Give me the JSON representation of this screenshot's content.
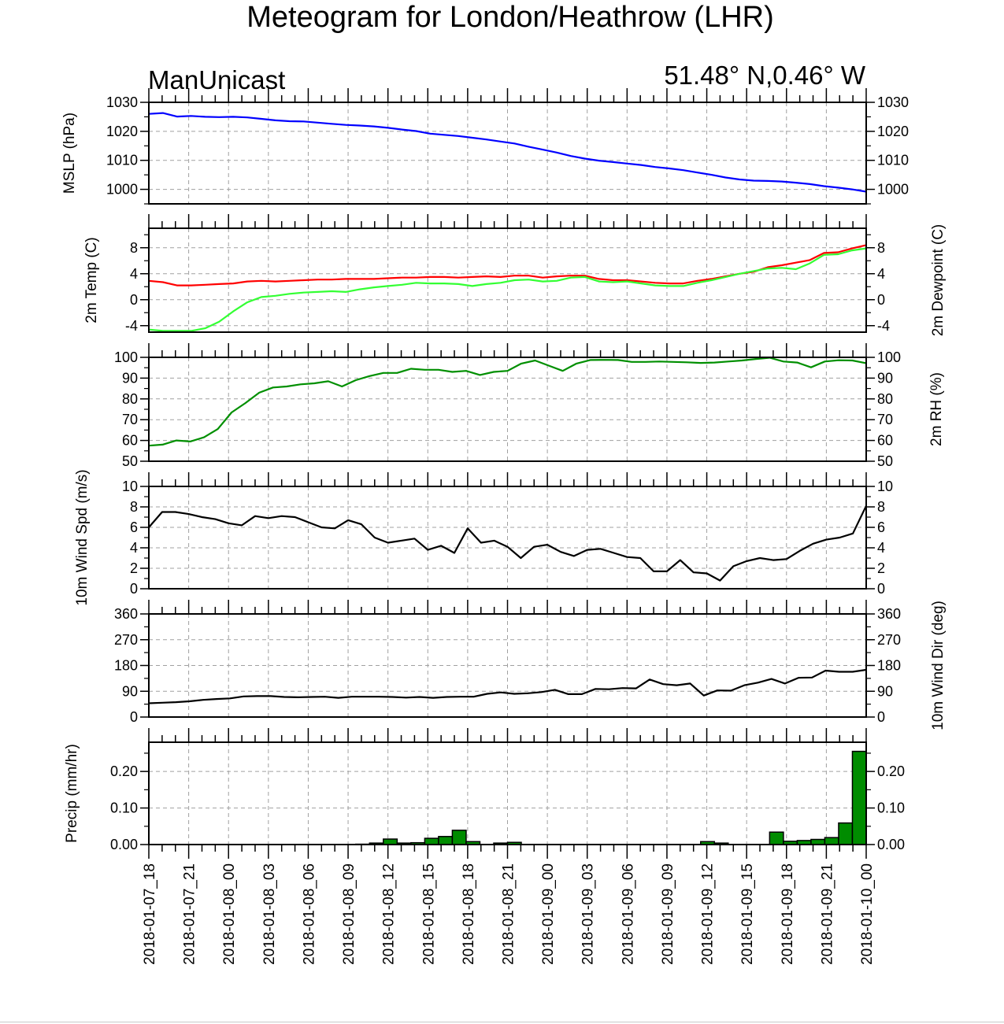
{
  "title": "Meteogram for London/Heathrow (LHR)",
  "model_label": "ManUnicast",
  "location_label": "51.48° N,0.46° W",
  "colors": {
    "mslp": "#0000ff",
    "temp": "#ff0000",
    "dewpoint": "#33ff33",
    "rh": "#008f00",
    "wind": "#000000",
    "precip_fill": "#008c00",
    "grid": "#a0a0a0"
  },
  "chart_data": [
    {
      "type": "line",
      "ylabel": "MSLP (hPa)",
      "ylabel_right": "",
      "ylim": [
        995,
        1030
      ],
      "yticks": [
        1000,
        1010,
        1020,
        1030
      ],
      "tick_labels": [
        "1000",
        "1010",
        "1020",
        "1030"
      ],
      "series": [
        {
          "color": "#0000ff",
          "values": [
            1026,
            1026.3,
            1025.1,
            1025.3,
            1025,
            1024.9,
            1025,
            1024.8,
            1024.3,
            1023.8,
            1023.5,
            1023.4,
            1023,
            1022.6,
            1022.2,
            1022,
            1021.7,
            1021.2,
            1020.6,
            1020.1,
            1019.2,
            1018.8,
            1018.4,
            1017.8,
            1017.2,
            1016.5,
            1015.8,
            1014.7,
            1013.7,
            1012.7,
            1011.5,
            1010.6,
            1009.9,
            1009.4,
            1008.9,
            1008.4,
            1007.7,
            1007.2,
            1006.6,
            1005.8,
            1005,
            1004.1,
            1003.4,
            1003,
            1002.9,
            1002.7,
            1002.3,
            1001.8,
            1001.1,
            1000.6,
            1000,
            999.2
          ]
        }
      ]
    },
    {
      "type": "line",
      "ylabel": "2m Temp (C)",
      "ylabel_right": "2m Dewpoint (C)",
      "ylim": [
        -5,
        11
      ],
      "yticks": [
        -4,
        0,
        4,
        8
      ],
      "tick_labels": [
        "-4",
        "0",
        "4",
        "8"
      ],
      "series": [
        {
          "color": "#ff0000",
          "values": [
            2.9,
            2.7,
            2.2,
            2.2,
            2.3,
            2.4,
            2.5,
            2.8,
            2.9,
            2.8,
            2.9,
            3,
            3.1,
            3.1,
            3.2,
            3.2,
            3.2,
            3.3,
            3.4,
            3.4,
            3.5,
            3.5,
            3.4,
            3.5,
            3.6,
            3.5,
            3.7,
            3.7,
            3.4,
            3.6,
            3.7,
            3.7,
            3.2,
            3.0,
            3.0,
            2.8,
            2.6,
            2.5,
            2.5,
            2.9,
            3.2,
            3.6,
            4.0,
            4.3,
            5.0,
            5.3,
            5.7,
            6.1,
            7.2,
            7.3,
            7.9,
            8.4
          ]
        },
        {
          "color": "#33ff33",
          "values": [
            -4.6,
            -4.8,
            -4.8,
            -4.8,
            -4.4,
            -3.4,
            -1.8,
            -0.4,
            0.4,
            0.6,
            0.9,
            1.1,
            1.2,
            1.3,
            1.2,
            1.6,
            1.9,
            2.1,
            2.3,
            2.6,
            2.5,
            2.5,
            2.4,
            2.1,
            2.4,
            2.6,
            3.0,
            3.1,
            2.8,
            2.9,
            3.4,
            3.5,
            2.8,
            2.7,
            2.8,
            2.5,
            2.2,
            2.1,
            2.1,
            2.6,
            3.0,
            3.5,
            4.0,
            4.4,
            4.8,
            4.9,
            4.7,
            5.6,
            6.9,
            7.0,
            7.6,
            7.9
          ]
        }
      ]
    },
    {
      "type": "line",
      "ylabel": "",
      "ylabel_right": "2m RH (%)",
      "ylim": [
        50,
        100
      ],
      "yticks": [
        50,
        60,
        70,
        80,
        90,
        100
      ],
      "tick_labels": [
        "50",
        "60",
        "70",
        "80",
        "90",
        "100"
      ],
      "series": [
        {
          "color": "#008f00",
          "values": [
            57.5,
            58,
            60,
            59.5,
            61.5,
            65.5,
            73.5,
            78,
            83,
            85.5,
            86,
            87,
            87.5,
            88.5,
            86,
            89,
            91,
            92.5,
            92.5,
            94.5,
            94,
            94,
            93,
            93.5,
            91.5,
            93,
            93.5,
            97,
            98.5,
            96,
            93.5,
            97,
            98.7,
            98.8,
            98.7,
            97.8,
            97.8,
            98,
            97.8,
            97.6,
            97.3,
            97.5,
            98,
            98.5,
            99.2,
            99.8,
            98,
            97.5,
            95.2,
            98,
            98.6,
            98.5,
            97.2
          ]
        }
      ]
    },
    {
      "type": "line",
      "ylabel": "10m Wind Spd (m/s)",
      "ylabel_right": "",
      "ylim": [
        0,
        10
      ],
      "yticks": [
        0,
        2,
        4,
        6,
        8,
        10
      ],
      "tick_labels": [
        "0",
        "2",
        "4",
        "6",
        "8",
        "10"
      ],
      "series": [
        {
          "color": "#000000",
          "values": [
            6,
            7.5,
            7.5,
            7.3,
            7,
            6.8,
            6.4,
            6.2,
            7.1,
            6.9,
            7.1,
            7,
            6.5,
            6,
            5.9,
            6.7,
            6.3,
            5,
            4.5,
            4.7,
            4.9,
            3.8,
            4.2,
            3.5,
            5.9,
            4.5,
            4.7,
            4.1,
            3,
            4.1,
            4.3,
            3.6,
            3.2,
            3.8,
            3.9,
            3.5,
            3.1,
            3,
            1.7,
            1.7,
            2.8,
            1.6,
            1.5,
            0.8,
            2.2,
            2.7,
            3,
            2.8,
            2.9,
            3.7,
            4.4,
            4.8,
            5,
            5.4,
            8.1
          ]
        }
      ]
    },
    {
      "type": "line",
      "ylabel": "",
      "ylabel_right": "10m Wind Dir (deg)",
      "ylim": [
        0,
        360
      ],
      "yticks": [
        0,
        90,
        180,
        270,
        360
      ],
      "tick_labels": [
        "0",
        "90",
        "180",
        "270",
        "360"
      ],
      "series": [
        {
          "color": "#000000",
          "values": [
            48,
            50,
            52,
            55,
            60,
            63,
            65,
            72,
            73,
            73,
            70,
            69,
            70,
            71,
            67,
            71,
            71,
            71,
            70,
            68,
            70,
            67,
            70,
            71,
            71,
            81,
            86,
            81,
            83,
            87,
            95,
            80,
            80,
            98,
            97,
            101,
            100,
            131,
            115,
            111,
            117,
            75,
            93,
            92,
            111,
            120,
            133,
            117,
            137,
            138,
            162,
            158,
            158,
            165
          ]
        }
      ]
    },
    {
      "type": "bar",
      "ylabel": "Precip (mm/hr)",
      "ylabel_right": "",
      "ylim": [
        0,
        0.28
      ],
      "yticks": [
        0,
        0.1,
        0.2
      ],
      "tick_labels": [
        "0.00",
        "0.10",
        "0.20"
      ],
      "series": [
        {
          "color": "#008c00",
          "values": [
            0,
            0,
            0,
            0,
            0,
            0,
            0,
            0,
            0,
            0,
            0,
            0,
            0,
            0,
            0,
            0.001,
            0.004,
            0.015,
            0.004,
            0.005,
            0.017,
            0.022,
            0.039,
            0.008,
            0,
            0.004,
            0.006,
            0,
            0,
            0,
            0,
            0,
            0,
            0,
            0,
            0,
            0,
            0,
            0,
            0,
            0.008,
            0.004,
            0,
            0,
            0,
            0.034,
            0.009,
            0.011,
            0.014,
            0.019,
            0.059,
            0.255
          ]
        }
      ]
    }
  ],
  "x_axis": {
    "tick_labels": [
      "2018-01-07_18",
      "2018-01-07_21",
      "2018-01-08_00",
      "2018-01-08_03",
      "2018-01-08_06",
      "2018-01-08_09",
      "2018-01-08_12",
      "2018-01-08_15",
      "2018-01-08_18",
      "2018-01-08_21",
      "2018-01-09_00",
      "2018-01-09_03",
      "2018-01-09_06",
      "2018-01-09_09",
      "2018-01-09_12",
      "2018-01-09_15",
      "2018-01-09_18",
      "2018-01-09_21",
      "2018-01-10_00"
    ]
  }
}
